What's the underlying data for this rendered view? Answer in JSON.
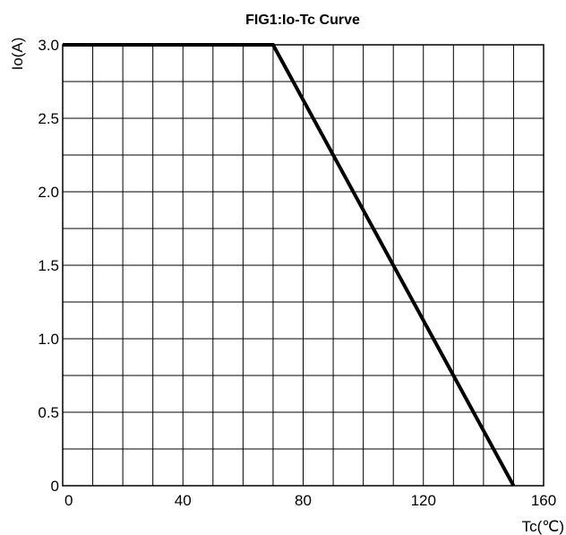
{
  "chart_data": {
    "type": "line",
    "title": "FIG1:Io-Tc Curve",
    "xlabel": "Tc(℃)",
    "ylabel": "Io(A)",
    "xlim": [
      0,
      160
    ],
    "ylim": [
      0,
      3.0
    ],
    "grid": true,
    "x_ticks": [
      {
        "value": 0,
        "label": "0"
      },
      {
        "value": 40,
        "label": "40"
      },
      {
        "value": 80,
        "label": "80"
      },
      {
        "value": 120,
        "label": "120"
      },
      {
        "value": 160,
        "label": "160"
      }
    ],
    "y_ticks": [
      {
        "value": 0,
        "label": "0"
      },
      {
        "value": 0.5,
        "label": "0.5"
      },
      {
        "value": 1.0,
        "label": "1.0"
      },
      {
        "value": 1.5,
        "label": "1.5"
      },
      {
        "value": 2.0,
        "label": "2.0"
      },
      {
        "value": 2.5,
        "label": "2.5"
      },
      {
        "value": 3.0,
        "label": "3.0"
      }
    ],
    "x_grid_step": 10,
    "y_grid_step": 0.25,
    "series": [
      {
        "x": [
          0,
          70,
          150
        ],
        "y": [
          3.0,
          3.0,
          0
        ],
        "color": "#000000"
      }
    ]
  }
}
